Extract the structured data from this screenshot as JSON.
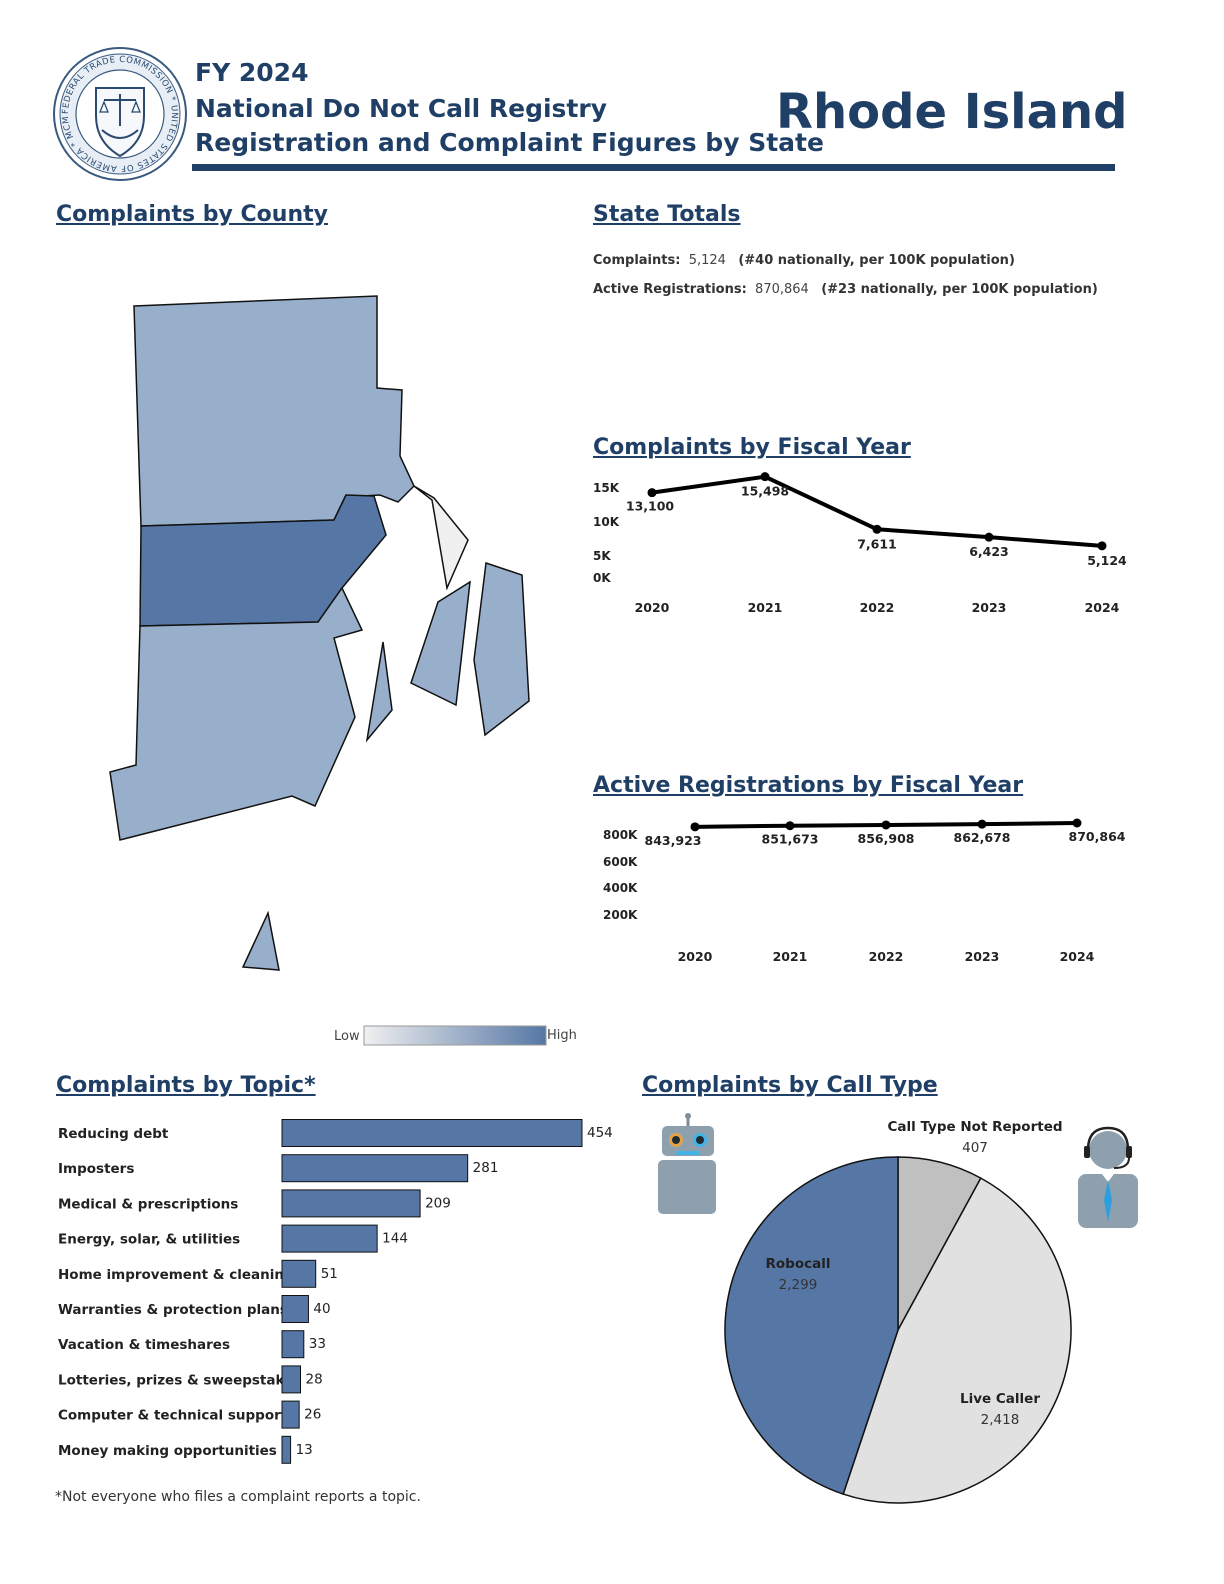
{
  "header": {
    "fiscal_year": "FY 2024",
    "registry_name": "National Do Not Call Registry",
    "subtitle": "Registration and Complaint Figures by State",
    "state": "Rhode Island",
    "seal_text": "FEDERAL TRADE COMMISSION * UNITED STATES OF AMERICA * MCMXV"
  },
  "sections": {
    "county": "Complaints by County",
    "state_totals": "State Totals",
    "fiscal_year_complaints": "Complaints by Fiscal Year",
    "fiscal_year_registrations": "Active Registrations by Fiscal Year",
    "topic": "Complaints by Topic*",
    "call_type": "Complaints by Call Type"
  },
  "state_totals": {
    "complaints_label": "Complaints:",
    "complaints_value": "5,124",
    "complaints_rank": "(#40 nationally, per 100K population)",
    "registrations_label": "Active Registrations:",
    "registrations_value": "870,864",
    "registrations_rank": "(#23 nationally, per 100K population)"
  },
  "map_legend": {
    "low": "Low",
    "high": "High",
    "low_color": "#f0f0f0",
    "high_color": "#5677a5"
  },
  "colors": {
    "brand": "#1f3f66",
    "bar": "#5677a5",
    "county_base": "#97afcb",
    "county_high": "#5677a5",
    "county_low": "#f0f0f0",
    "gray_slice": "#c0c0c0",
    "light_slice": "#e1e1e1"
  },
  "footnote": "*Not everyone who files a complaint reports a topic.",
  "chart_data": [
    {
      "type": "line",
      "title": "Complaints by Fiscal Year",
      "x": [
        "2020",
        "2021",
        "2022",
        "2023",
        "2024"
      ],
      "values": [
        13100,
        15498,
        7611,
        6423,
        5124
      ],
      "labels": [
        "13,100",
        "15,498",
        "7,611",
        "6,423",
        "5,124"
      ],
      "yticks": [
        "15K",
        "10K",
        "5K",
        "0K"
      ],
      "ylim": [
        0,
        15000
      ]
    },
    {
      "type": "line",
      "title": "Active Registrations by Fiscal Year",
      "x": [
        "2020",
        "2021",
        "2022",
        "2023",
        "2024"
      ],
      "values": [
        843923,
        851673,
        856908,
        862678,
        870864
      ],
      "labels": [
        "843,923",
        "851,673",
        "856,908",
        "862,678",
        "870,864"
      ],
      "yticks": [
        "800K",
        "600K",
        "400K",
        "200K"
      ],
      "ylim": [
        200000,
        870864
      ]
    },
    {
      "type": "bar",
      "title": "Complaints by Topic*",
      "categories": [
        "Reducing debt",
        "Imposters",
        "Medical & prescriptions",
        "Energy, solar, & utilities",
        "Home improvement & cleaning",
        "Warranties & protection plans",
        "Vacation & timeshares",
        "Lotteries, prizes & sweepstakes",
        "Computer & technical support",
        "Money making opportunities"
      ],
      "values": [
        454,
        281,
        209,
        144,
        51,
        40,
        33,
        28,
        26,
        13
      ]
    },
    {
      "type": "pie",
      "title": "Complaints by Call Type",
      "slices": [
        {
          "label": "Call Type Not Reported",
          "value": 407,
          "display": "407",
          "color": "#c0c0c0"
        },
        {
          "label": "Live Caller",
          "value": 2418,
          "display": "2,418",
          "color": "#e1e1e1"
        },
        {
          "label": "Robocall",
          "value": 2299,
          "display": "2,299",
          "color": "#5677a5"
        }
      ]
    }
  ]
}
